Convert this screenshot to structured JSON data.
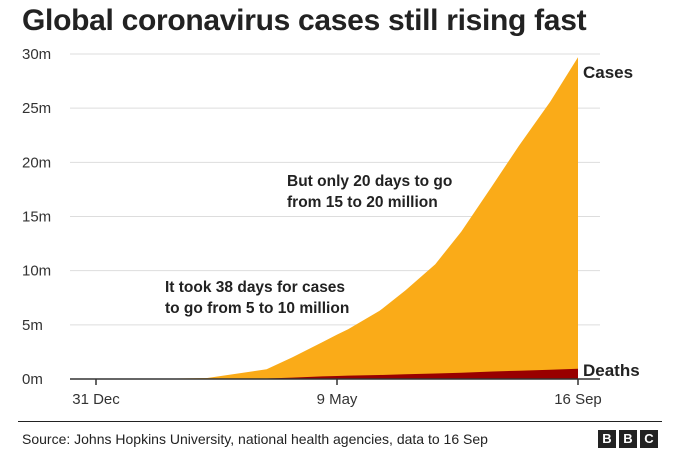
{
  "title": "Global coronavirus cases still rising fast",
  "source": "Source: Johns Hopkins University, national health agencies, data to 16 Sep",
  "logo": {
    "letters": [
      "B",
      "B",
      "C"
    ]
  },
  "colors": {
    "cases": "#FAAB18",
    "deaths": "#990000",
    "grid": "#dddddd",
    "text": "#222222"
  },
  "chart_data": {
    "type": "area",
    "title": "Global coronavirus cases still rising fast",
    "xlabel": "",
    "ylabel": "",
    "x_tick_labels": [
      "31 Dec",
      "9 May",
      "16 Sep"
    ],
    "y_tick_labels": [
      "0m",
      "5m",
      "10m",
      "15m",
      "20m",
      "25m",
      "30m"
    ],
    "y_tick_values": [
      0,
      5,
      10,
      15,
      20,
      25,
      30
    ],
    "ylim": [
      0,
      30
    ],
    "grid": true,
    "x": [
      "31 Dec",
      "31 Jan",
      "29 Feb",
      "1 Apr",
      "15 Apr",
      "1 May",
      "9 May",
      "15 May",
      "1 Jun",
      "15 Jun",
      "1 Jul",
      "15 Jul",
      "1 Aug",
      "15 Aug",
      "1 Sep",
      "16 Sep"
    ],
    "series": [
      {
        "name": "Cases",
        "values": [
          0,
          0.01,
          0.09,
          0.9,
          2.0,
          3.4,
          4.1,
          4.6,
          6.3,
          8.2,
          10.6,
          13.6,
          17.9,
          21.5,
          25.6,
          29.7
        ]
      },
      {
        "name": "Deaths",
        "values": [
          0,
          0,
          0.003,
          0.05,
          0.13,
          0.24,
          0.28,
          0.31,
          0.37,
          0.43,
          0.51,
          0.58,
          0.69,
          0.77,
          0.86,
          0.94
        ]
      }
    ],
    "annotations": [
      {
        "lines": [
          "It took 38 days for cases",
          "to go from 5 to 10 million"
        ]
      },
      {
        "lines": [
          "But only 20 days to go",
          "from 15 to 20 million"
        ]
      }
    ]
  }
}
